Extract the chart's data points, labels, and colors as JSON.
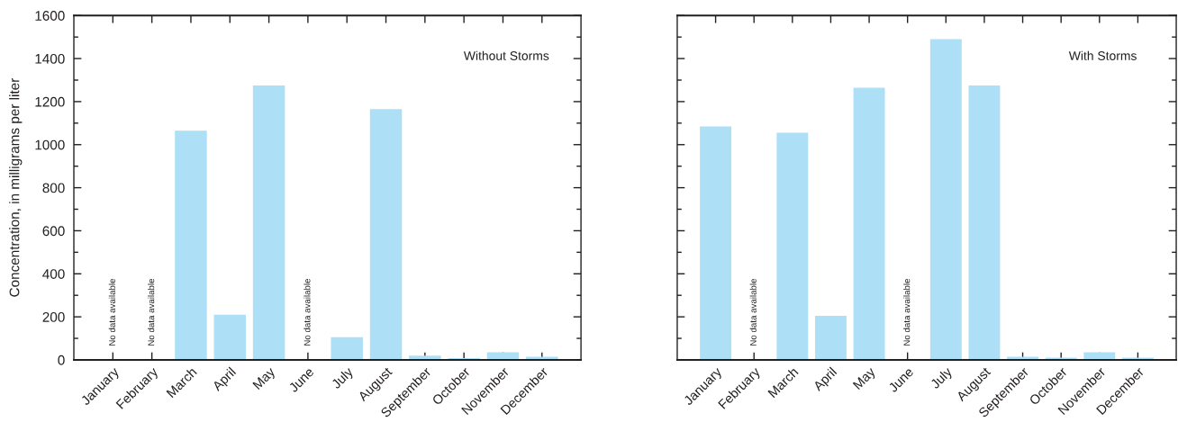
{
  "chart_data": [
    {
      "type": "bar",
      "title": "Without Storms",
      "ylabel": "Concentration, in milligrams per liter",
      "categories": [
        "January",
        "February",
        "March",
        "April",
        "May",
        "June",
        "July",
        "August",
        "September",
        "October",
        "November",
        "December"
      ],
      "values": [
        null,
        null,
        1065,
        210,
        1275,
        null,
        105,
        1165,
        20,
        8,
        35,
        15
      ],
      "color": "#ade0f7",
      "ylim": [
        0,
        1600
      ],
      "yticks": [
        0,
        {
          "value": 100,
          "label": null
        },
        200,
        {
          "value": 300,
          "label": null
        },
        400,
        {
          "value": 500,
          "label": null
        },
        600,
        {
          "value": 700,
          "label": null
        },
        800,
        {
          "value": 900,
          "label": null
        },
        1000,
        {
          "value": 1100,
          "label": null
        },
        1200,
        {
          "value": 1300,
          "label": null
        },
        1400,
        {
          "value": 1500,
          "label": null
        },
        1600
      ],
      "annotations": [
        "No data available",
        "No data available",
        "No data available"
      ]
    },
    {
      "type": "bar",
      "title": "With Storms",
      "categories": [
        "January",
        "February",
        "March",
        "April",
        "May",
        "June",
        "July",
        "August",
        "September",
        "October",
        "November",
        "December"
      ],
      "values": [
        1085,
        null,
        1055,
        205,
        1265,
        null,
        1490,
        1275,
        15,
        10,
        35,
        10
      ],
      "color": "#ade0f7",
      "ylim": [
        0,
        1600
      ],
      "yticks": [
        0,
        {
          "value": 100,
          "label": null
        },
        200,
        {
          "value": 300,
          "label": null
        },
        400,
        {
          "value": 500,
          "label": null
        },
        600,
        {
          "value": 700,
          "label": null
        },
        800,
        {
          "value": 900,
          "label": null
        },
        1000,
        {
          "value": 1100,
          "label": null
        },
        1200,
        {
          "value": 1300,
          "label": null
        },
        1400,
        {
          "value": 1500,
          "label": null
        },
        1600
      ],
      "tick_labels": "x",
      "annotations": [
        "No data available",
        "No data available"
      ]
    }
  ]
}
